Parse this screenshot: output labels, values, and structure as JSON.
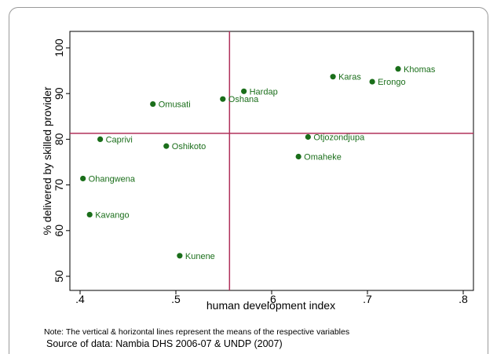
{
  "chart_data": {
    "type": "scatter",
    "xlabel": "human development index",
    "ylabel": "% delivered by skilled provider",
    "xlim": [
      0.4,
      0.8
    ],
    "ylim": [
      50,
      100
    ],
    "x_ticks": [
      0.4,
      0.5,
      0.6,
      0.7,
      0.8
    ],
    "x_tick_labels": [
      ".4",
      ".5",
      ".6",
      ".7",
      ".8"
    ],
    "y_ticks": [
      50,
      60,
      70,
      80,
      90,
      100
    ],
    "y_tick_labels": [
      "50",
      "60",
      "70",
      "80",
      "90",
      "100"
    ],
    "grid": false,
    "marker_color": "#1a6e1a",
    "reference_line_color": "#b0305a",
    "reference_lines": {
      "x_mean": 0.556,
      "y_mean": 81.3
    },
    "points": [
      {
        "label": "Khomas",
        "x": 0.732,
        "y": 95.4
      },
      {
        "label": "Karas",
        "x": 0.664,
        "y": 93.7
      },
      {
        "label": "Erongo",
        "x": 0.705,
        "y": 92.6
      },
      {
        "label": "Hardap",
        "x": 0.571,
        "y": 90.5
      },
      {
        "label": "Oshana",
        "x": 0.549,
        "y": 88.8
      },
      {
        "label": "Omusati",
        "x": 0.476,
        "y": 87.7
      },
      {
        "label": "Otjozondjupa",
        "x": 0.638,
        "y": 80.5
      },
      {
        "label": "Caprivi",
        "x": 0.421,
        "y": 80.0
      },
      {
        "label": "Oshikoto",
        "x": 0.49,
        "y": 78.5
      },
      {
        "label": "Omaheke",
        "x": 0.628,
        "y": 76.2
      },
      {
        "label": "Ohangwena",
        "x": 0.403,
        "y": 71.4
      },
      {
        "label": "Kavango",
        "x": 0.41,
        "y": 63.5
      },
      {
        "label": "Kunene",
        "x": 0.504,
        "y": 54.5
      }
    ]
  },
  "footer": {
    "note": "Note: The vertical & horizontal lines represent the means of the respective variables",
    "source": "Source of data: Nambia DHS 2006-07 & UNDP (2007)"
  }
}
